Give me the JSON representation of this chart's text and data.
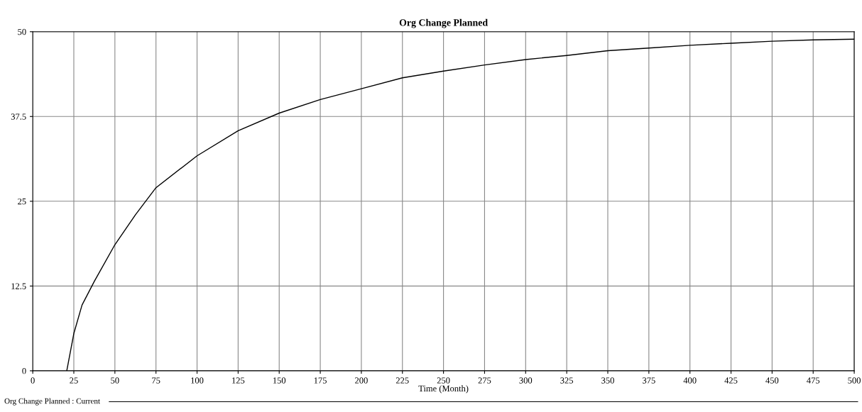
{
  "chart_data": {
    "type": "line",
    "title": "Org Change Planned",
    "xlabel": "Time (Month)",
    "xlim": [
      0,
      500
    ],
    "ylim": [
      0,
      50
    ],
    "xticks": [
      0,
      25,
      50,
      75,
      100,
      125,
      150,
      175,
      200,
      225,
      250,
      275,
      300,
      325,
      350,
      375,
      400,
      425,
      450,
      475,
      500
    ],
    "yticks": [
      0,
      12.5,
      25,
      37.5,
      50
    ],
    "grid": true,
    "legend": "bottom",
    "marker": "none",
    "line_style": "solid",
    "series": [
      {
        "name": "Org Change Planned : Current",
        "color": "#000000",
        "x": [
          20.7,
          25,
          30,
          37.5,
          50,
          62.5,
          75,
          100,
          125,
          150,
          175,
          200,
          225,
          250,
          275,
          300,
          325,
          350,
          375,
          400,
          425,
          450,
          475,
          500
        ],
        "values": [
          0,
          5.5,
          9.7,
          13.2,
          18.6,
          23,
          27,
          31.7,
          35.4,
          38,
          40,
          41.6,
          43.2,
          44.2,
          45.1,
          45.9,
          46.5,
          47.2,
          47.6,
          48,
          48.3,
          48.6,
          48.8,
          48.9
        ]
      }
    ]
  }
}
